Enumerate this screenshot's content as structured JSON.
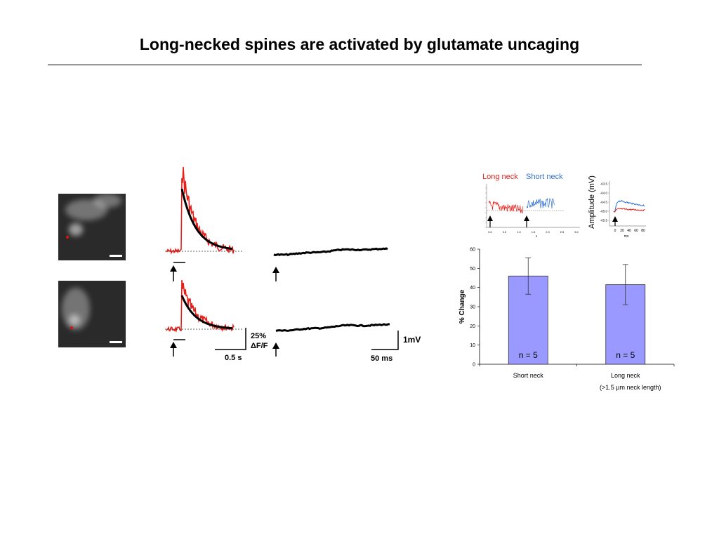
{
  "page": {
    "title": "Long-necked spines are activated by glutamate uncaging"
  },
  "traces_panel": {
    "scale_calcium_pct": "25%",
    "scale_calcium_unit": "ΔF/F",
    "scale_calcium_time": "0.5 s",
    "scale_voltage": "1mV",
    "scale_voltage_time": "50 ms",
    "colors": {
      "calcium": "#e8201a",
      "fit": "#000000",
      "voltage": "#000000"
    }
  },
  "inset": {
    "legend_long": "Long neck",
    "legend_short": "Short neck",
    "colors": {
      "long": "#e8201a",
      "short": "#2f6fd0"
    },
    "left_xticks": [
      "0.0",
      "0.5",
      "1.0",
      "1.5",
      "2.0",
      "2.5",
      "3.0"
    ],
    "left_xlabel": "s",
    "right_ylabel": "Amplitude (mV)",
    "right_yticks": [
      "-63.5",
      "-64.0",
      "-64.5",
      "-65.0",
      "-65.5"
    ],
    "right_xticks": [
      "0",
      "20",
      "40",
      "60",
      "80"
    ],
    "right_xlabel": "ms"
  },
  "chart_data": {
    "type": "bar",
    "categories": [
      "Short neck",
      "Long neck"
    ],
    "category_sublabels": [
      "",
      "(>1.5 µm neck length)"
    ],
    "values": [
      46,
      41.5
    ],
    "errors": [
      9.5,
      10.5
    ],
    "bar_labels": [
      "n = 5",
      "n = 5"
    ],
    "ylabel": "% Change",
    "xlabel": "",
    "ylim": [
      0,
      60
    ],
    "yticks": [
      0,
      10,
      20,
      30,
      40,
      50,
      60
    ],
    "bar_color": "#9999ff",
    "grid": false
  }
}
